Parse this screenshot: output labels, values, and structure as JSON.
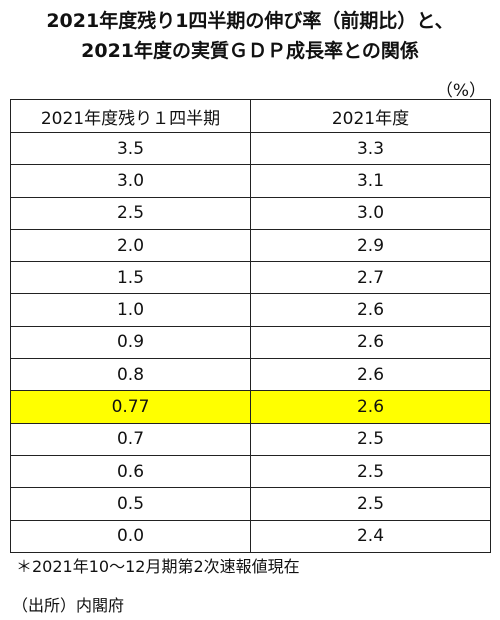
{
  "title_line1": "2021年度残り1四半期の伸び率（前期比）と、",
  "title_line2": "2021年度の実質ＧＤＰ成長率との関係",
  "unit": "（%）",
  "highlight_color": "#ffff00",
  "chart_data": {
    "type": "table",
    "columns": [
      "2021年度残り１四半期",
      "2021年度"
    ],
    "rows": [
      [
        "3.5",
        "3.3"
      ],
      [
        "3.0",
        "3.1"
      ],
      [
        "2.5",
        "3.0"
      ],
      [
        "2.0",
        "2.9"
      ],
      [
        "1.5",
        "2.7"
      ],
      [
        "1.0",
        "2.6"
      ],
      [
        "0.9",
        "2.6"
      ],
      [
        "0.8",
        "2.6"
      ],
      [
        "0.77",
        "2.6"
      ],
      [
        "0.7",
        "2.5"
      ],
      [
        "0.6",
        "2.5"
      ],
      [
        "0.5",
        "2.5"
      ],
      [
        "0.0",
        "2.4"
      ]
    ],
    "highlight_row": 8
  },
  "note": "＊2021年10～12月期第2次速報値現在",
  "source": "（出所）内閣府"
}
